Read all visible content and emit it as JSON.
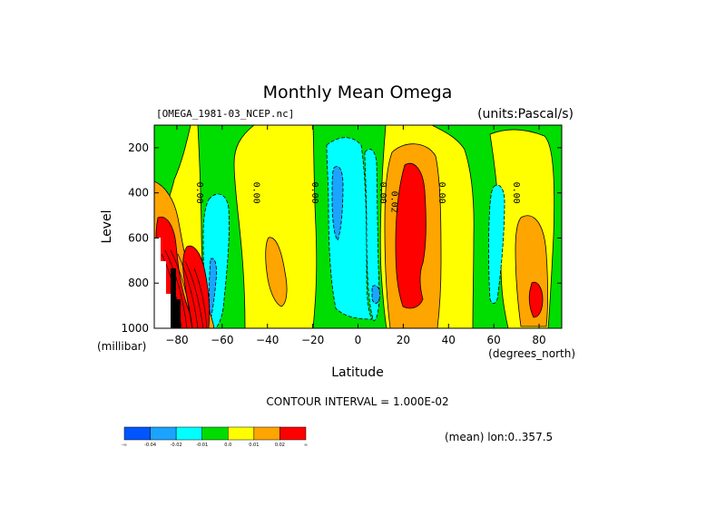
{
  "chart_data": {
    "type": "contour",
    "title": "Monthly Mean Omega",
    "subtitle_left": "[OMEGA_1981-03_NCEP.nc]",
    "subtitle_right": "(units:Pascal/s)",
    "xlabel": "Latitude",
    "ylabel": "Level",
    "x_units": "(degrees_north)",
    "y_units": "(millibar)",
    "xlim": [
      -90,
      90
    ],
    "ylim": [
      1000,
      100
    ],
    "x_ticks": [
      -80,
      -60,
      -40,
      -20,
      0,
      20,
      40,
      60,
      80
    ],
    "y_ticks": [
      200,
      400,
      600,
      800,
      1000
    ],
    "contour_interval_text": "CONTOUR INTERVAL = 1.000E-02",
    "mean_text": "(mean) lon:0..357.5",
    "contour_labels": [
      {
        "lat": -70,
        "lev": 400,
        "text": "0.00"
      },
      {
        "lat": -45,
        "lev": 400,
        "text": "0.00"
      },
      {
        "lat": -19,
        "lev": 400,
        "text": "0.00"
      },
      {
        "lat": 11,
        "lev": 400,
        "text": "0.00"
      },
      {
        "lat": 16,
        "lev": 440,
        "text": "0.02"
      },
      {
        "lat": 37,
        "lev": 400,
        "text": "0.00"
      },
      {
        "lat": 70,
        "lev": 400,
        "text": "0.00"
      }
    ],
    "colorbar": {
      "levels": [
        "-∞",
        "-0.04",
        "-0.02",
        "-0.01",
        "0.0",
        "0.01",
        "0.02",
        "∞"
      ],
      "colors": [
        "#0055ff",
        "#1aa4ff",
        "#00ffff",
        "#00dd00",
        "#ffff00",
        "#ffa500",
        "#ff0000"
      ]
    },
    "grid": false
  }
}
